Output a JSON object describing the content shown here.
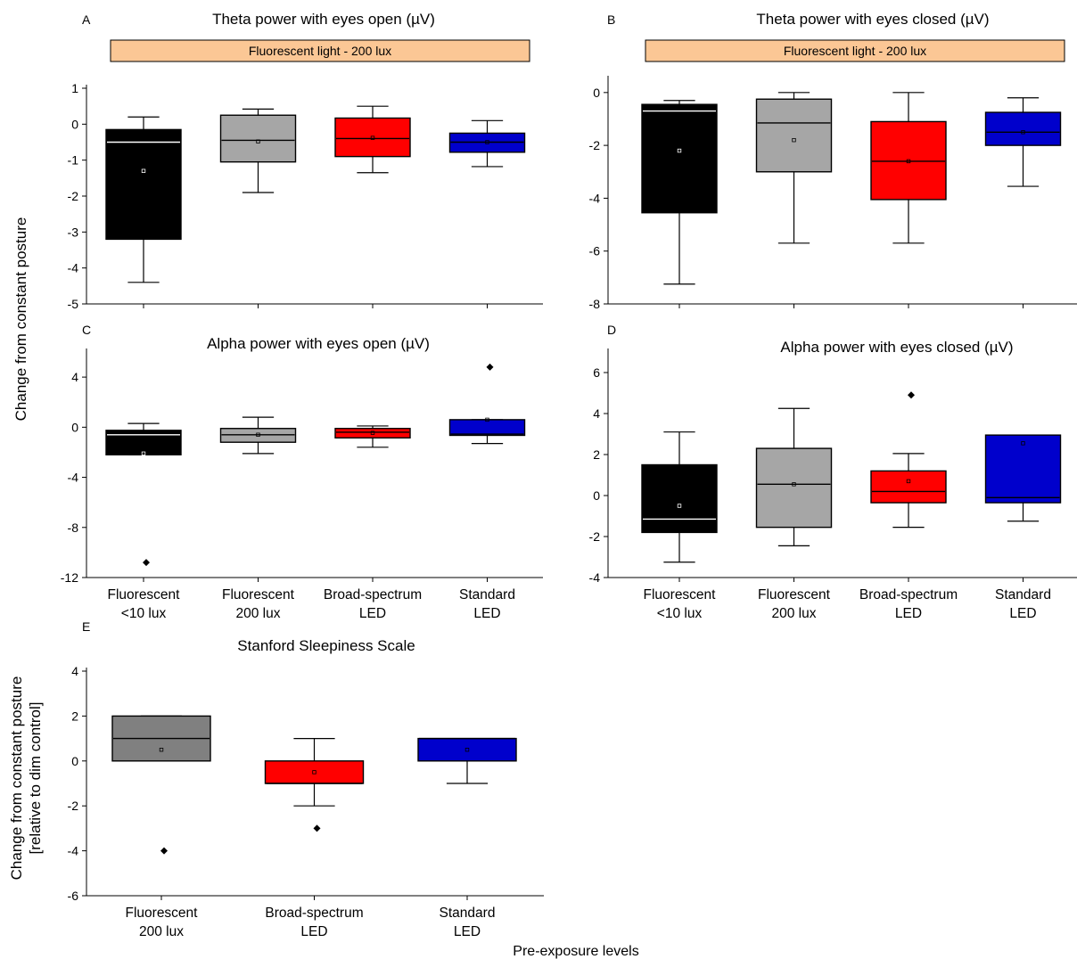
{
  "ylabel_top": "Change from constant posture",
  "ylabel_bottom": [
    "Change from constant posture",
    "[relative to dim control]"
  ],
  "xlabel": "Pre-exposure levels",
  "chart_data": [
    {
      "id": "A",
      "type": "box",
      "panel": "A",
      "title": "Theta power with eyes open (µV)",
      "banner": "Fluorescent light - 200 lux",
      "ylim": [
        -5,
        1
      ],
      "yticks": [
        1,
        0,
        -1,
        -2,
        -3,
        -4,
        -5
      ],
      "categories": [],
      "boxes": [
        {
          "color": "#000000",
          "whisker_low": -4.4,
          "q1": -3.2,
          "median": -0.5,
          "q3": -0.15,
          "whisker_high": 0.2,
          "mean": -1.3,
          "outliers": []
        },
        {
          "color": "#a6a6a6",
          "whisker_low": -1.9,
          "q1": -1.05,
          "median": -0.45,
          "q3": 0.25,
          "whisker_high": 0.42,
          "mean": -0.48,
          "outliers": []
        },
        {
          "color": "#ff0000",
          "whisker_low": -1.35,
          "q1": -0.9,
          "median": -0.4,
          "q3": 0.17,
          "whisker_high": 0.5,
          "mean": -0.38,
          "outliers": []
        },
        {
          "color": "#0000cc",
          "whisker_low": -1.18,
          "q1": -0.78,
          "median": -0.5,
          "q3": -0.25,
          "whisker_high": 0.1,
          "mean": -0.5,
          "outliers": []
        }
      ]
    },
    {
      "id": "B",
      "type": "box",
      "panel": "B",
      "title": "Theta power with eyes closed (µV)",
      "banner": "Fluorescent light - 200 lux",
      "ylim": [
        -8,
        0.5
      ],
      "yticks": [
        0,
        -2,
        -4,
        -6,
        -8
      ],
      "categories": [],
      "boxes": [
        {
          "color": "#000000",
          "whisker_low": -7.25,
          "q1": -4.55,
          "median": -0.7,
          "q3": -0.45,
          "whisker_high": -0.3,
          "mean": -2.2,
          "outliers": []
        },
        {
          "color": "#a6a6a6",
          "whisker_low": -5.7,
          "q1": -3.0,
          "median": -1.15,
          "q3": -0.25,
          "whisker_high": 0.0,
          "mean": -1.8,
          "outliers": []
        },
        {
          "color": "#ff0000",
          "whisker_low": -5.7,
          "q1": -4.05,
          "median": -2.6,
          "q3": -1.1,
          "whisker_high": 0.0,
          "mean": -2.6,
          "outliers": []
        },
        {
          "color": "#0000cc",
          "whisker_low": -3.55,
          "q1": -2.0,
          "median": -1.5,
          "q3": -0.75,
          "whisker_high": -0.2,
          "mean": -1.5,
          "outliers": []
        }
      ]
    },
    {
      "id": "C",
      "type": "box",
      "panel": "C",
      "title": "Alpha power with eyes open (µV)",
      "banner": "",
      "ylim": [
        -12,
        6
      ],
      "yticks": [
        4,
        0,
        -4,
        -8,
        -12
      ],
      "categories": [
        [
          "Fluorescent",
          "<10 lux"
        ],
        [
          "Fluorescent",
          "200 lux"
        ],
        [
          "Broad-spectrum",
          "LED"
        ],
        [
          "Standard",
          "LED"
        ]
      ],
      "boxes": [
        {
          "color": "#000000",
          "whisker_low": -2.2,
          "q1": -2.2,
          "median": -0.6,
          "q3": -0.25,
          "whisker_high": 0.3,
          "mean": -2.1,
          "outliers": [
            -10.8
          ]
        },
        {
          "color": "#a6a6a6",
          "whisker_low": -2.1,
          "q1": -1.2,
          "median": -0.6,
          "q3": -0.1,
          "whisker_high": 0.8,
          "mean": -0.6,
          "outliers": []
        },
        {
          "color": "#ff0000",
          "whisker_low": -1.6,
          "q1": -0.85,
          "median": -0.4,
          "q3": -0.1,
          "whisker_high": 0.1,
          "mean": -0.45,
          "outliers": []
        },
        {
          "color": "#0000cc",
          "whisker_low": -1.3,
          "q1": -0.65,
          "median": -0.55,
          "q3": 0.6,
          "whisker_high": 0.6,
          "mean": 0.6,
          "outliers": [
            4.8
          ]
        }
      ]
    },
    {
      "id": "D",
      "type": "box",
      "panel": "D",
      "title": "Alpha power with eyes closed (µV)",
      "banner": "",
      "ylim": [
        -4,
        7
      ],
      "yticks": [
        6,
        4,
        2,
        0,
        -2,
        -4
      ],
      "categories": [
        [
          "Fluorescent",
          "<10 lux"
        ],
        [
          "Fluorescent",
          "200 lux"
        ],
        [
          "Broad-spectrum",
          "LED"
        ],
        [
          "Standard",
          "LED"
        ]
      ],
      "boxes": [
        {
          "color": "#000000",
          "whisker_low": -3.25,
          "q1": -1.8,
          "median": -1.15,
          "q3": 1.5,
          "whisker_high": 3.1,
          "mean": -0.5,
          "outliers": []
        },
        {
          "color": "#a6a6a6",
          "whisker_low": -2.45,
          "q1": -1.55,
          "median": 0.55,
          "q3": 2.3,
          "whisker_high": 4.25,
          "mean": 0.55,
          "outliers": []
        },
        {
          "color": "#ff0000",
          "whisker_low": -1.55,
          "q1": -0.35,
          "median": 0.2,
          "q3": 1.2,
          "whisker_high": 2.05,
          "mean": 0.7,
          "outliers": [
            4.9
          ]
        },
        {
          "color": "#0000cc",
          "whisker_low": -1.25,
          "q1": -0.35,
          "median": -0.1,
          "q3": 2.95,
          "whisker_high": 2.95,
          "mean": 2.55,
          "outliers": []
        }
      ]
    },
    {
      "id": "E",
      "type": "box",
      "panel": "E",
      "title": "Stanford Sleepiness Scale",
      "banner": "",
      "ylim": [
        -6,
        4
      ],
      "yticks": [
        4,
        2,
        0,
        -2,
        -4,
        -6
      ],
      "categories": [
        [
          "Fluorescent",
          "200 lux"
        ],
        [
          "Broad-spectrum",
          "LED"
        ],
        [
          "Standard",
          "LED"
        ]
      ],
      "boxes": [
        {
          "color": "#808080",
          "whisker_low": 0,
          "q1": 0,
          "median": 1,
          "q3": 2,
          "whisker_high": 2,
          "mean": 0.5,
          "outliers": [
            -4
          ]
        },
        {
          "color": "#ff0000",
          "whisker_low": -2,
          "q1": -1,
          "median": -1,
          "q3": 0,
          "whisker_high": 1,
          "mean": -0.5,
          "outliers": [
            -3
          ]
        },
        {
          "color": "#0000cc",
          "whisker_low": -1,
          "q1": 0,
          "median": 1,
          "q3": 1,
          "whisker_high": 1,
          "mean": 0.5,
          "outliers": []
        }
      ]
    }
  ]
}
